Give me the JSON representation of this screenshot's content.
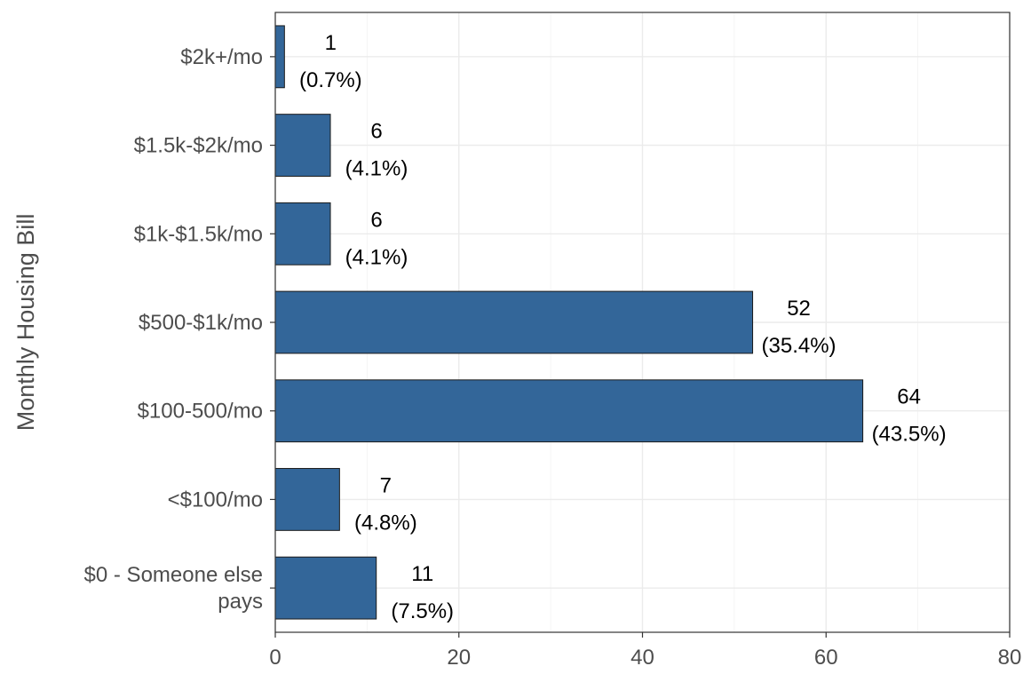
{
  "chart_data": {
    "type": "bar",
    "orientation": "horizontal",
    "ylabel": "Monthly Housing Bill",
    "xlabel": "",
    "xlim": [
      0,
      80
    ],
    "x_ticks": [
      "0",
      "20",
      "40",
      "60",
      "80"
    ],
    "grid": true,
    "bar_color": "#336699",
    "categories": [
      "$2k+/mo",
      "$1.5k-$2k/mo",
      "$1k-$1.5k/mo",
      "$500-$1k/mo",
      "$100-500/mo",
      "<$100/mo",
      "$0 - Someone else pays"
    ],
    "values": [
      1,
      6,
      6,
      52,
      64,
      7,
      11
    ],
    "count_labels": [
      "1",
      "6",
      "6",
      "52",
      "64",
      "7",
      "11"
    ],
    "percent_labels": [
      "(0.7%)",
      "(4.1%)",
      "(4.1%)",
      "(35.4%)",
      "(43.5%)",
      "(4.8%)",
      "(7.5%)"
    ]
  }
}
